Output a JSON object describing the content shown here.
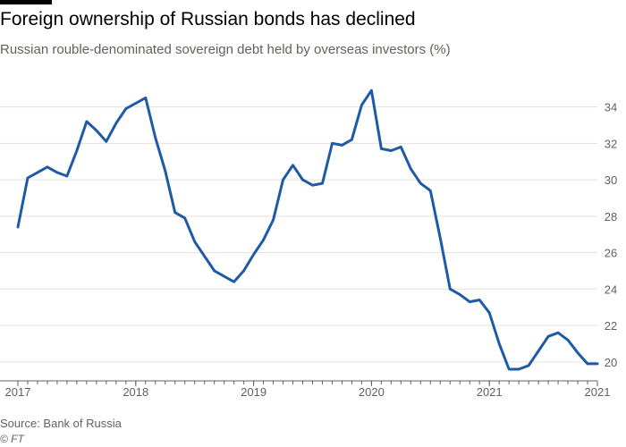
{
  "title": "Foreign ownership of Russian bonds has declined",
  "subtitle": "Russian rouble-denominated sovereign debt held by overseas investors (%)",
  "source": "Source: Bank of Russia",
  "credit": "© FT",
  "colors": {
    "line": "#1f5aa6",
    "grid": "#e6e1dc",
    "axis": "#66605c",
    "top_rule": "#000000"
  },
  "chart_data": {
    "type": "line",
    "title": "Foreign ownership of Russian bonds has declined",
    "subtitle": "Russian rouble-denominated sovereign debt held by overseas investors (%)",
    "xlabel": "",
    "ylabel": "",
    "xlim": [
      "2017-01",
      "2021-12"
    ],
    "ylim": [
      19.5,
      35.5
    ],
    "y_axis_position": "right",
    "grid": "horizontal",
    "x_ticks": [
      {
        "date": "2017-01",
        "label": "2017"
      },
      {
        "date": "2018-01",
        "label": "2018"
      },
      {
        "date": "2019-01",
        "label": "2019"
      },
      {
        "date": "2020-01",
        "label": "2020"
      },
      {
        "date": "2021-01",
        "label": "2021"
      },
      {
        "date": "2021-12",
        "label": "2021"
      }
    ],
    "y_ticks": [
      20,
      22,
      24,
      26,
      28,
      30,
      32,
      34
    ],
    "series": [
      {
        "x": [
          "2017-01",
          "2017-02",
          "2017-03",
          "2017-04",
          "2017-05",
          "2017-06",
          "2017-07",
          "2017-08",
          "2017-09",
          "2017-10",
          "2017-11",
          "2017-12",
          "2018-01",
          "2018-02",
          "2018-03",
          "2018-04",
          "2018-05",
          "2018-06",
          "2018-07",
          "2018-08",
          "2018-09",
          "2018-10",
          "2018-11",
          "2018-12",
          "2019-01",
          "2019-02",
          "2019-03",
          "2019-04",
          "2019-05",
          "2019-06",
          "2019-07",
          "2019-08",
          "2019-09",
          "2019-10",
          "2019-11",
          "2019-12",
          "2020-01",
          "2020-02",
          "2020-03",
          "2020-04",
          "2020-05",
          "2020-06",
          "2020-07",
          "2020-08",
          "2020-09",
          "2020-10",
          "2020-11",
          "2020-12",
          "2021-01",
          "2021-02",
          "2021-03",
          "2021-04",
          "2021-05",
          "2021-06",
          "2021-07",
          "2021-08",
          "2021-09",
          "2021-10",
          "2021-11",
          "2021-12"
        ],
        "values": [
          27.4,
          30.1,
          30.4,
          30.7,
          30.4,
          30.2,
          31.6,
          33.2,
          32.7,
          32.1,
          33.1,
          33.9,
          34.2,
          34.5,
          32.3,
          30.5,
          28.2,
          27.9,
          26.6,
          25.8,
          25.0,
          24.7,
          24.4,
          25.0,
          25.9,
          26.7,
          27.8,
          30.0,
          30.8,
          30.0,
          29.7,
          29.8,
          32.0,
          31.9,
          32.2,
          34.1,
          34.9,
          31.7,
          31.6,
          31.8,
          30.6,
          29.8,
          29.4,
          26.8,
          24.0,
          23.7,
          23.3,
          23.4,
          22.7,
          21.0,
          19.6,
          19.6,
          19.8,
          20.6,
          21.4,
          21.6,
          21.2,
          20.5,
          19.9,
          19.9
        ]
      }
    ]
  }
}
